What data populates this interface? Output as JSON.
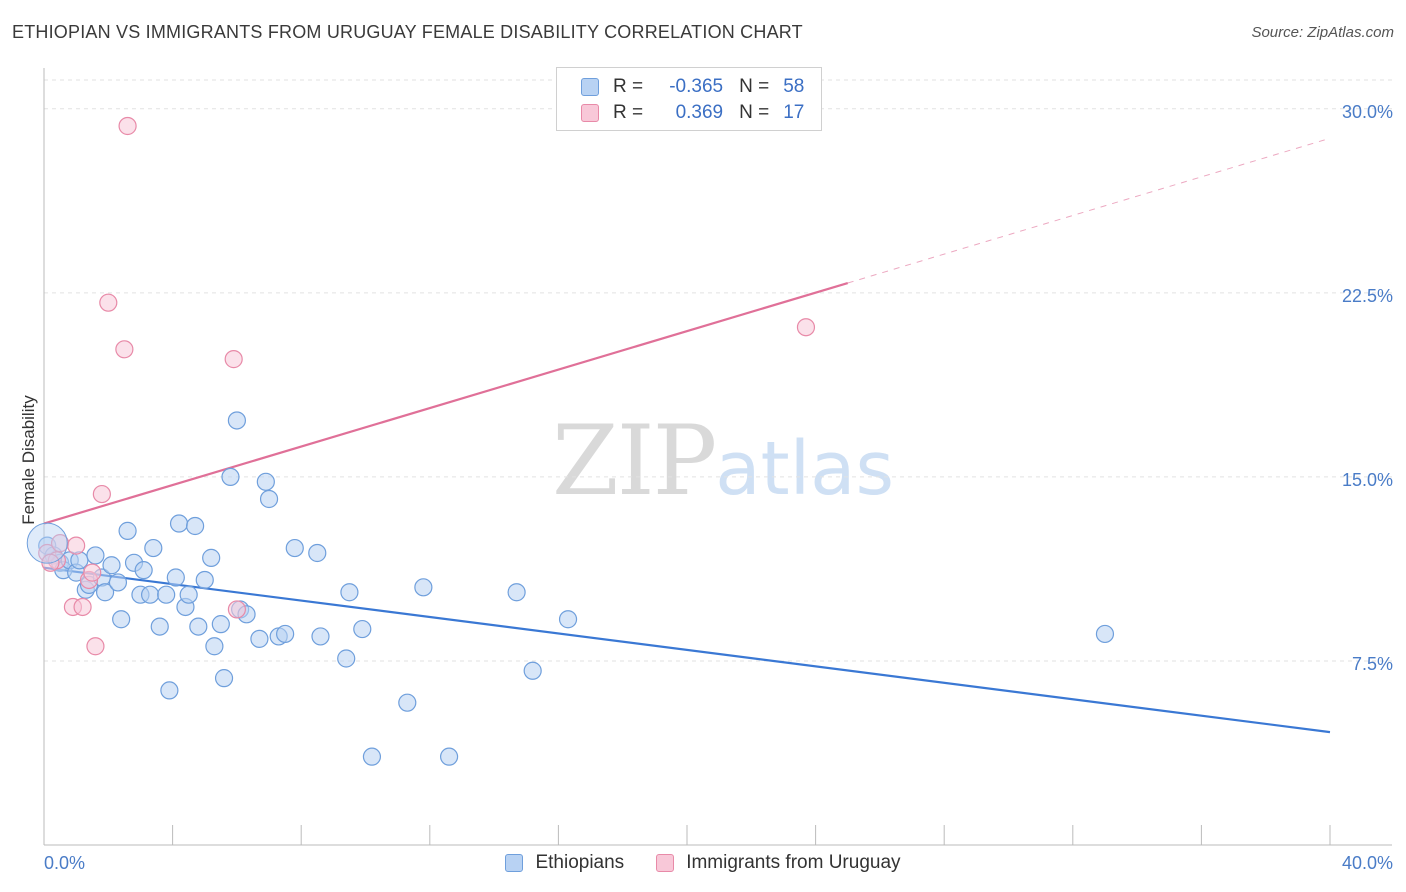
{
  "title": "ETHIOPIAN VS IMMIGRANTS FROM URUGUAY FEMALE DISABILITY CORRELATION CHART",
  "source": "Source: ZipAtlas.com",
  "watermark": {
    "zip": "ZIP",
    "atlas": "atlas"
  },
  "legend": {
    "rows": [
      {
        "r_label": "R =",
        "r_value": "-0.365",
        "n_label": "N =",
        "n_value": "58"
      },
      {
        "r_label": "R =",
        "r_value": "0.369",
        "n_label": "N =",
        "n_value": "17"
      }
    ]
  },
  "colors": {
    "ethiopians_fill": "#b8d2f3",
    "ethiopians_stroke": "#6f9fdc",
    "ethiopians_line": "#3a78d4",
    "uruguay_fill": "#f8c8d8",
    "uruguay_stroke": "#e88aa8",
    "uruguay_line": "#e07098",
    "tick_text": "#4a7cc7",
    "grid": "#e2e2e2"
  },
  "chart_data": {
    "type": "scatter",
    "title": "ETHIOPIAN VS IMMIGRANTS FROM URUGUAY FEMALE DISABILITY CORRELATION CHART",
    "xlabel": "",
    "ylabel": "Female Disability",
    "xlim": [
      0,
      40
    ],
    "ylim": [
      0,
      31.5
    ],
    "x_tick_labels": [
      "0.0%",
      "40.0%"
    ],
    "y_ticks": [
      7.5,
      15.0,
      22.5,
      30.0
    ],
    "y_tick_labels": [
      "7.5%",
      "15.0%",
      "22.5%",
      "30.0%"
    ],
    "grid": "horizontal-dashed",
    "legend_position": "top-center",
    "series": [
      {
        "name": "Ethiopians",
        "points": [
          [
            0.1,
            12.2
          ],
          [
            0.3,
            11.8
          ],
          [
            0.5,
            11.5
          ],
          [
            0.6,
            11.2
          ],
          [
            0.8,
            11.6
          ],
          [
            1.0,
            11.1
          ],
          [
            1.1,
            11.6
          ],
          [
            1.3,
            10.4
          ],
          [
            1.4,
            10.6
          ],
          [
            1.6,
            11.8
          ],
          [
            1.8,
            10.9
          ],
          [
            1.9,
            10.3
          ],
          [
            2.1,
            11.4
          ],
          [
            2.3,
            10.7
          ],
          [
            2.4,
            9.2
          ],
          [
            2.6,
            12.8
          ],
          [
            2.8,
            11.5
          ],
          [
            3.0,
            10.2
          ],
          [
            3.1,
            11.2
          ],
          [
            3.3,
            10.2
          ],
          [
            3.4,
            12.1
          ],
          [
            3.6,
            8.9
          ],
          [
            3.8,
            10.2
          ],
          [
            3.9,
            6.3
          ],
          [
            4.1,
            10.9
          ],
          [
            4.2,
            13.1
          ],
          [
            4.4,
            9.7
          ],
          [
            4.5,
            10.2
          ],
          [
            4.7,
            13.0
          ],
          [
            4.8,
            8.9
          ],
          [
            5.0,
            10.8
          ],
          [
            5.2,
            11.7
          ],
          [
            5.3,
            8.1
          ],
          [
            5.5,
            9.0
          ],
          [
            5.6,
            6.8
          ],
          [
            5.8,
            15.0
          ],
          [
            6.0,
            17.3
          ],
          [
            6.1,
            9.6
          ],
          [
            6.3,
            9.4
          ],
          [
            6.7,
            8.4
          ],
          [
            6.9,
            14.8
          ],
          [
            7.0,
            14.1
          ],
          [
            7.3,
            8.5
          ],
          [
            7.5,
            8.6
          ],
          [
            7.8,
            12.1
          ],
          [
            8.5,
            11.9
          ],
          [
            8.6,
            8.5
          ],
          [
            9.4,
            7.6
          ],
          [
            9.5,
            10.3
          ],
          [
            9.9,
            8.8
          ],
          [
            10.2,
            3.6
          ],
          [
            11.3,
            5.8
          ],
          [
            11.8,
            10.5
          ],
          [
            12.6,
            3.6
          ],
          [
            14.7,
            10.3
          ],
          [
            15.2,
            7.1
          ],
          [
            16.3,
            9.2
          ],
          [
            33.0,
            8.6
          ]
        ]
      },
      {
        "name": "Immigrants from Uruguay",
        "points": [
          [
            0.1,
            11.9
          ],
          [
            0.4,
            11.6
          ],
          [
            0.5,
            12.3
          ],
          [
            0.9,
            9.7
          ],
          [
            1.0,
            12.2
          ],
          [
            1.2,
            9.7
          ],
          [
            1.4,
            10.8
          ],
          [
            1.5,
            11.1
          ],
          [
            1.6,
            8.1
          ],
          [
            1.8,
            14.3
          ],
          [
            2.0,
            22.1
          ],
          [
            2.5,
            20.2
          ],
          [
            2.6,
            29.3
          ],
          [
            5.9,
            19.8
          ],
          [
            6.0,
            9.6
          ],
          [
            23.7,
            21.1
          ],
          [
            0.2,
            11.5
          ]
        ]
      }
    ],
    "trendlines": [
      {
        "series": "Ethiopians",
        "x": [
          0,
          40
        ],
        "y": [
          11.3,
          4.6
        ]
      },
      {
        "series": "Immigrants from Uruguay",
        "x": [
          0,
          25
        ],
        "y": [
          13.1,
          22.9
        ],
        "dashed_extension_to": [
          40,
          28.8
        ]
      }
    ]
  },
  "bottom_legend": {
    "items": [
      {
        "label": "Ethiopians"
      },
      {
        "label": "Immigrants from Uruguay"
      }
    ]
  }
}
